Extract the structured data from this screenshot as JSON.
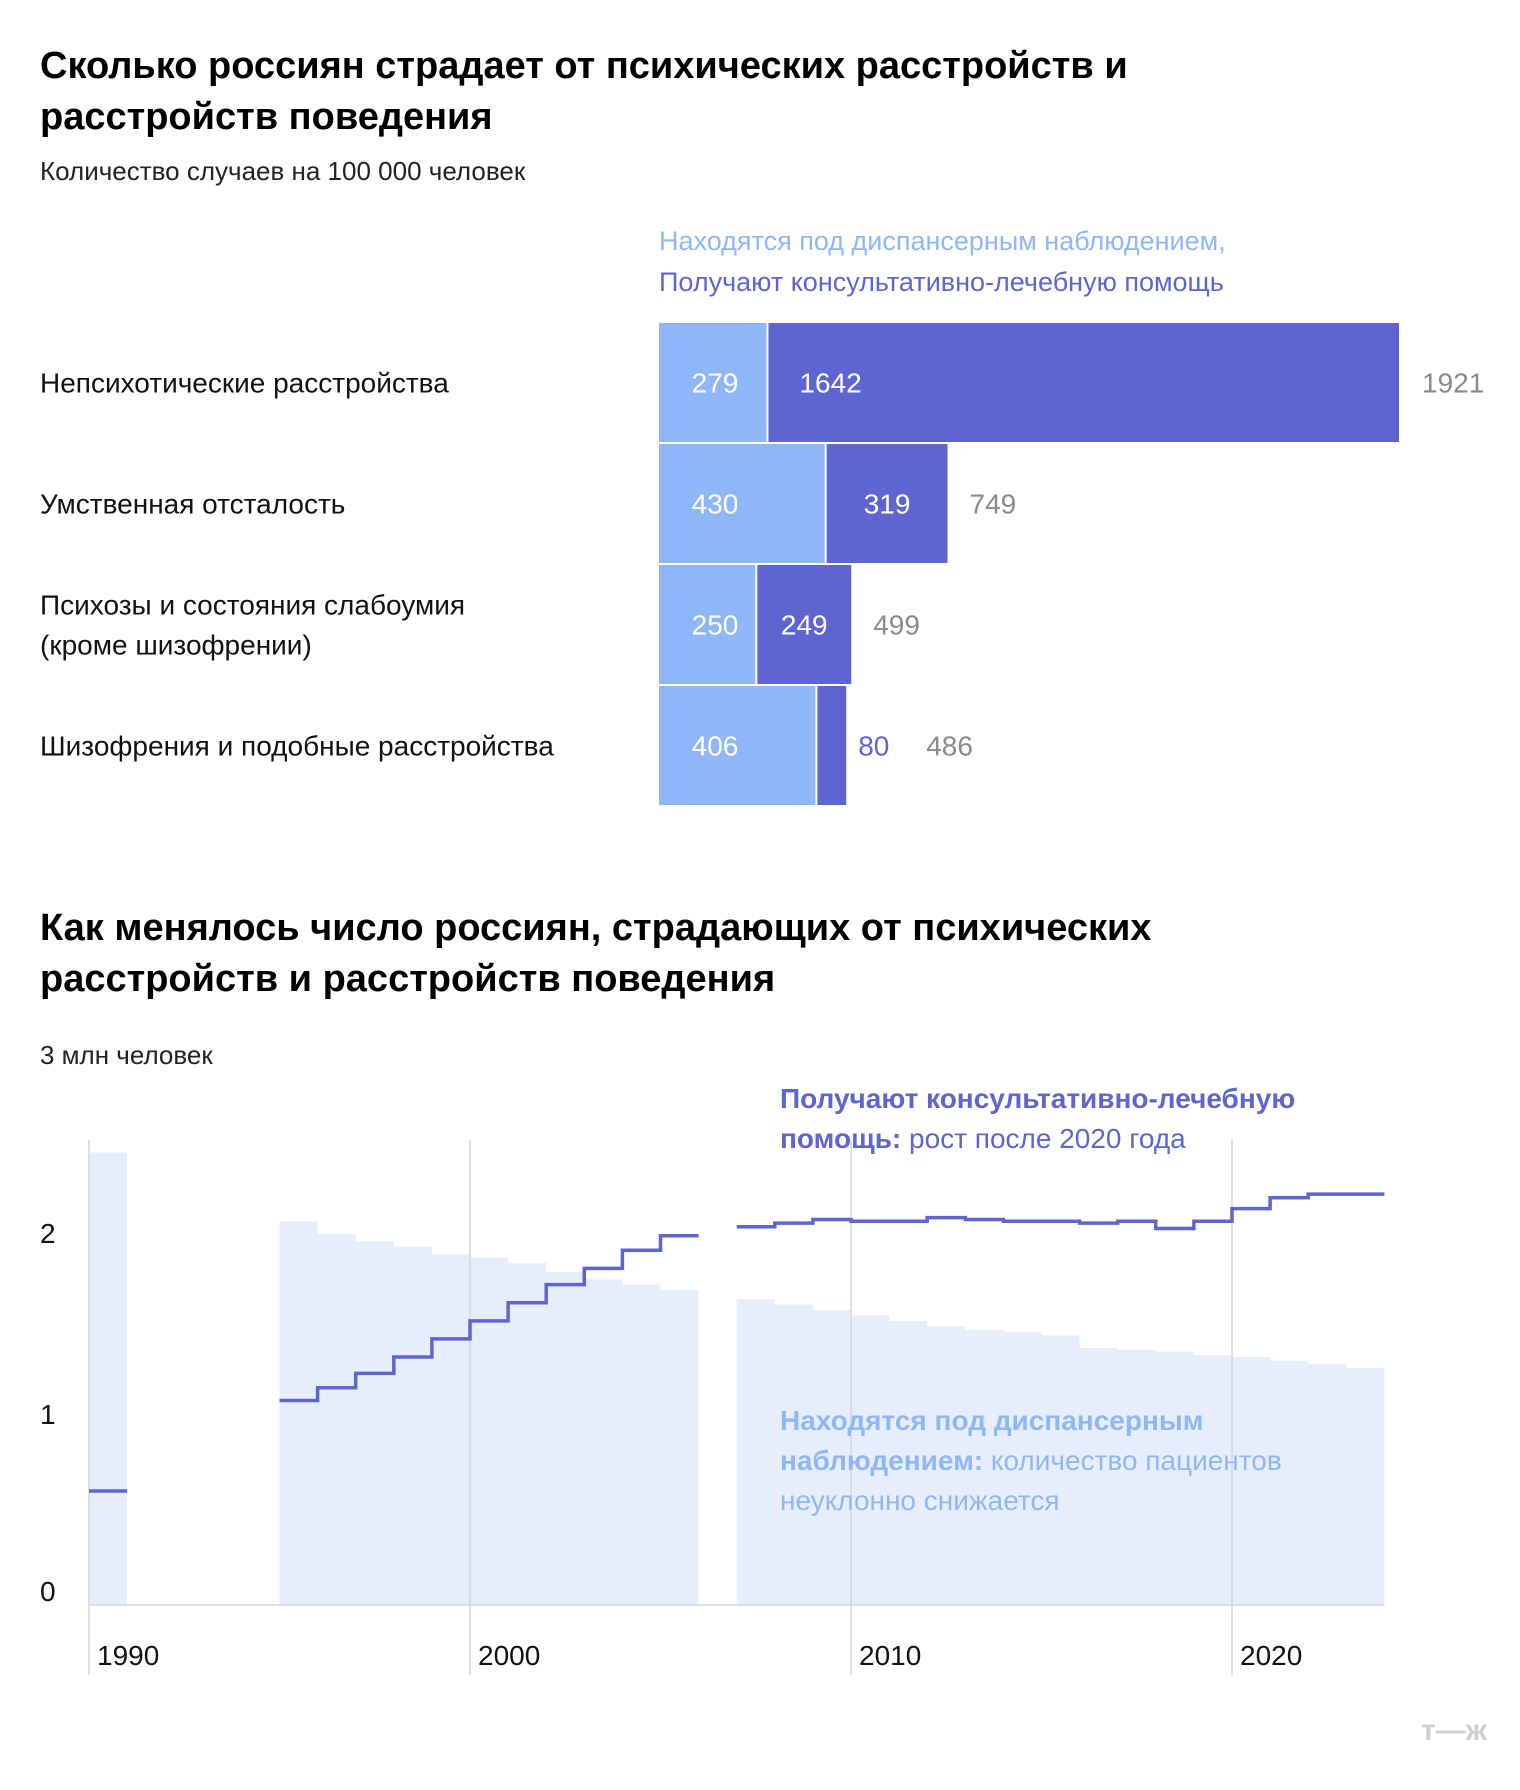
{
  "logo": "т—ж",
  "colors": {
    "dispensary": "#8fb7f8",
    "consultative": "#5f65d0",
    "total_text": "#8a8a8a",
    "area_fill": "#e6eefc",
    "grid": "#d6d6d6"
  },
  "chart_data": [
    {
      "type": "bar",
      "stacked": true,
      "orientation": "horizontal",
      "title": "Сколько россиян страдает от психических расстройств и расстройств поведения",
      "subtitle": "Количество случаев на 100 000 человек",
      "legend": {
        "placement": "top",
        "entries": [
          "Находятся под диспансерным наблюдением,",
          "Получают консультативно-лечебную помощь"
        ]
      },
      "categories": [
        [
          "Непсихотические расстройства"
        ],
        [
          "Умственная отсталость"
        ],
        [
          "Психозы и состояния слабоумия",
          "(кроме шизофрении)"
        ],
        [
          "Шизофрения и подобные расстройства"
        ]
      ],
      "series": [
        {
          "values": [
            279,
            430,
            250,
            406
          ]
        },
        {
          "values": [
            1642,
            319,
            249,
            80
          ]
        }
      ],
      "totals": [
        1921,
        749,
        499,
        486
      ]
    },
    {
      "type": "line",
      "title": "Как менялось число россиян, страдающих от психических расстройств и расстройств поведения",
      "unit_label": "3 млн человек",
      "y_ticks": [
        "0",
        "1",
        "2"
      ],
      "x_ticks": [
        "1990",
        "2000",
        "2010",
        "2020"
      ],
      "ylim": [
        0,
        2.55
      ],
      "xlim": [
        1990,
        2023
      ],
      "grid": true,
      "annotations": [
        {
          "bold": "Получают консультативно-лечебную помощь:",
          "lines": [
            "Получают консультативно-лечебную",
            "помощь: рост после 2020 года"
          ],
          "bold_lines": [
            "Получают консультативно-лечебную",
            "помощь:"
          ]
        },
        {
          "bold": "Находятся под диспансерным наблюдением:",
          "lines": [
            "Находятся под диспансерным",
            "наблюдением: количество пациентов",
            "неуклонно снижается"
          ],
          "bold_lines": [
            "Находятся под диспансерным",
            "наблюдением:"
          ]
        }
      ],
      "series": [
        {
          "kind": "area",
          "segments": [
            {
              "x": [
                1990
              ],
              "y": [
                2.5
              ]
            },
            {
              "x": [
                1995,
                1996,
                1997,
                1998,
                1999,
                2000,
                2001,
                2002,
                2003,
                2004,
                2005
              ],
              "y": [
                2.12,
                2.05,
                2.01,
                1.98,
                1.94,
                1.92,
                1.89,
                1.84,
                1.8,
                1.77,
                1.74
              ]
            },
            {
              "x": [
                2007,
                2008,
                2009,
                2010,
                2011,
                2012,
                2013,
                2014,
                2015,
                2016,
                2017,
                2018,
                2019,
                2020,
                2021,
                2022,
                2023
              ],
              "y": [
                1.69,
                1.66,
                1.63,
                1.6,
                1.57,
                1.54,
                1.52,
                1.51,
                1.49,
                1.42,
                1.41,
                1.4,
                1.38,
                1.37,
                1.35,
                1.33,
                1.31
              ]
            }
          ]
        },
        {
          "kind": "step",
          "segments": [
            {
              "x": [
                1990
              ],
              "y": [
                0.63
              ]
            },
            {
              "x": [
                1995,
                1996,
                1997,
                1998,
                1999,
                2000,
                2001,
                2002,
                2003,
                2004,
                2005
              ],
              "y": [
                1.13,
                1.2,
                1.28,
                1.37,
                1.47,
                1.57,
                1.67,
                1.77,
                1.86,
                1.96,
                2.04
              ]
            },
            {
              "x": [
                2007,
                2008,
                2009,
                2010,
                2011,
                2012,
                2013,
                2014,
                2015,
                2016,
                2017,
                2018,
                2019,
                2020,
                2021,
                2022,
                2023
              ],
              "y": [
                2.09,
                2.11,
                2.13,
                2.12,
                2.12,
                2.14,
                2.13,
                2.12,
                2.12,
                2.11,
                2.12,
                2.08,
                2.12,
                2.19,
                2.25,
                2.27,
                2.27
              ]
            }
          ]
        }
      ]
    }
  ]
}
